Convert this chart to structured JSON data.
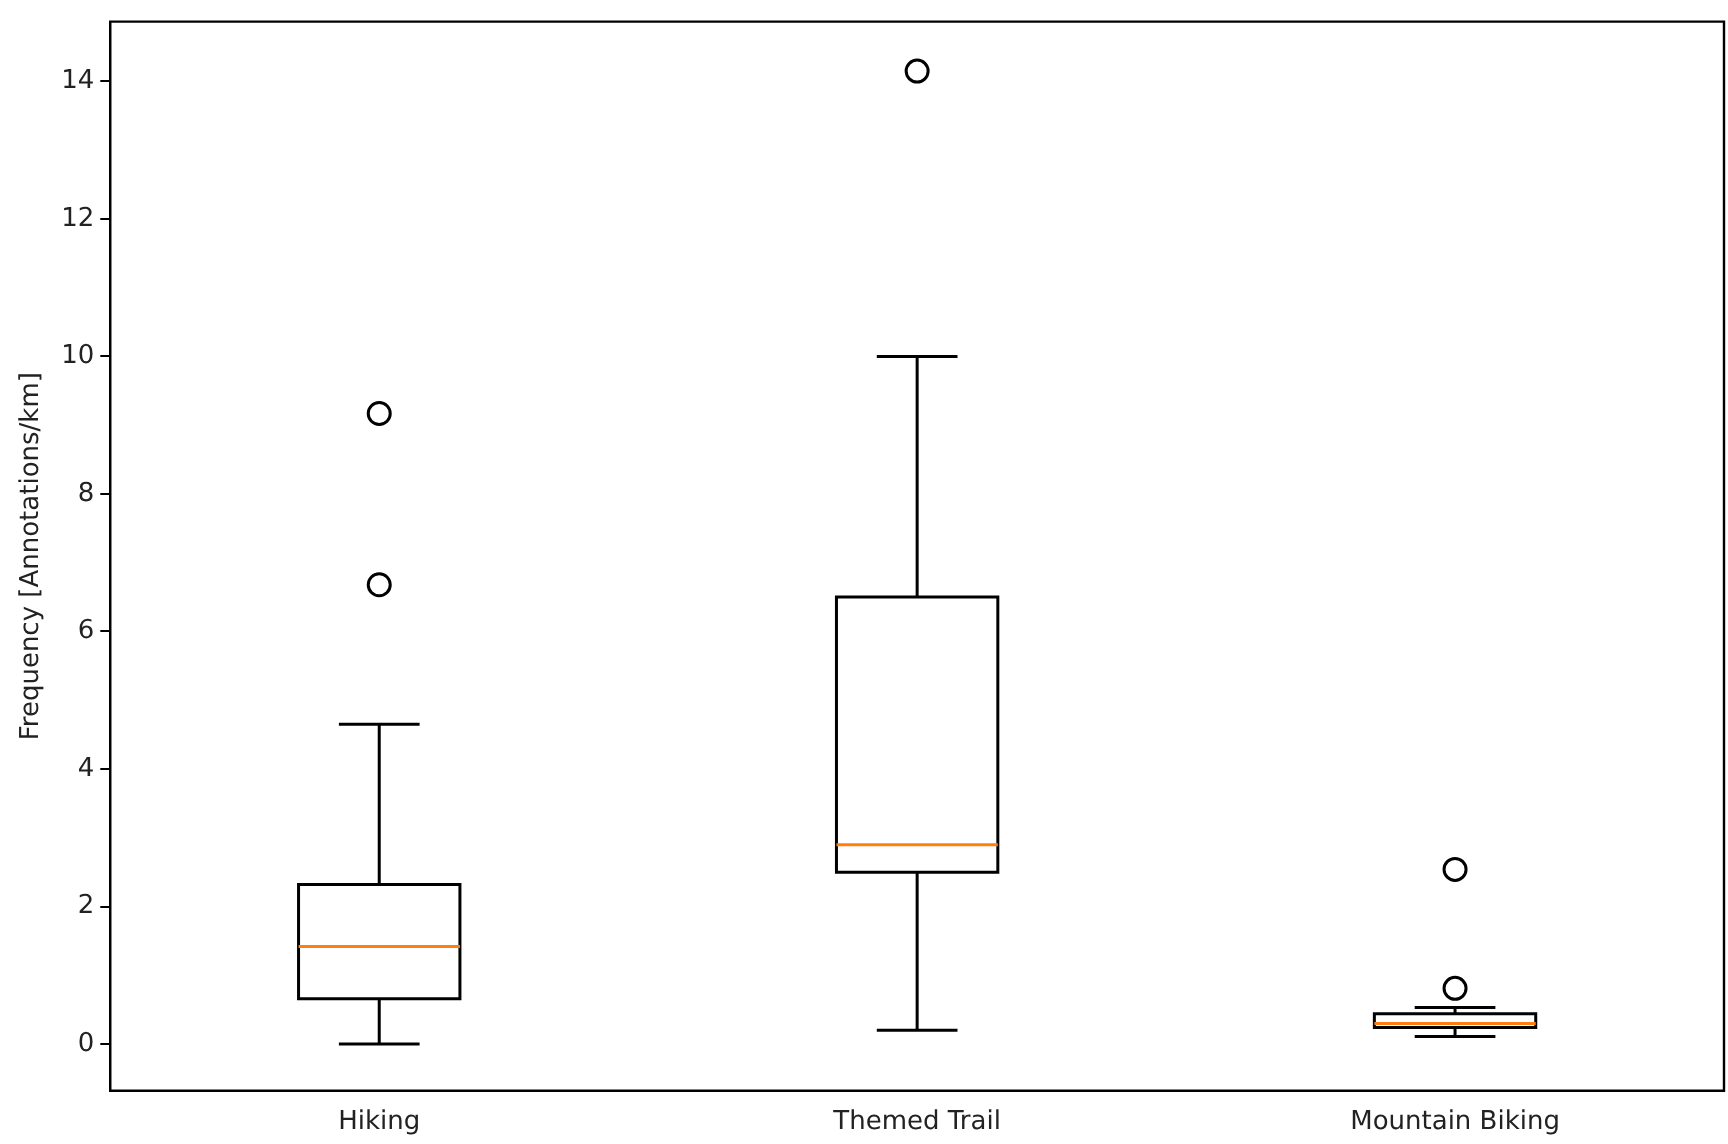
{
  "chart_data": {
    "type": "box",
    "ylabel": "Frequency [Annotations/km]",
    "categories": [
      "Hiking",
      "Themed Trail",
      "Mountain Biking"
    ],
    "boxes": [
      {
        "low": 0,
        "q1": 0.66,
        "median": 1.42,
        "q3": 2.32,
        "high": 4.65,
        "outliers": [
          6.68,
          9.17
        ]
      },
      {
        "low": 0.2,
        "q1": 2.5,
        "median": 2.9,
        "q3": 6.5,
        "high": 10,
        "outliers": [
          14.15
        ]
      },
      {
        "low": 0.11,
        "q1": 0.24,
        "median": 0.3,
        "q3": 0.44,
        "high": 0.53,
        "outliers": [
          0.81,
          2.54
        ]
      }
    ],
    "ylim": [
      -0.68,
      14.87
    ],
    "yticks": [
      0,
      2,
      4,
      6,
      8,
      10,
      12,
      14
    ],
    "grid": false
  }
}
